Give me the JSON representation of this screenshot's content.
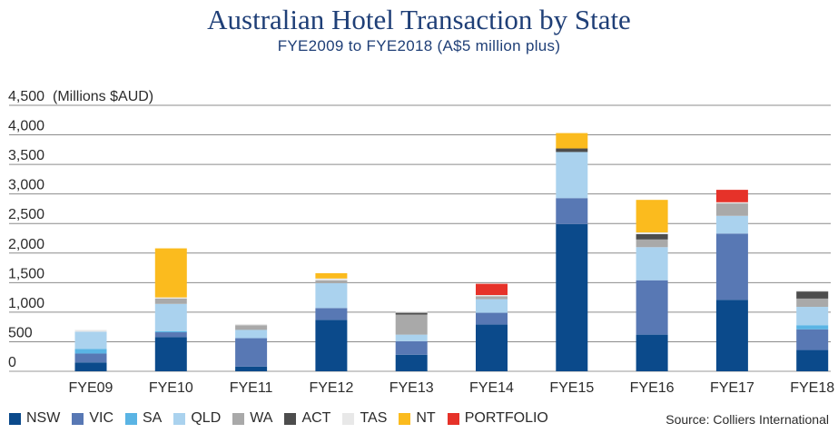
{
  "header": {
    "title": "Australian Hotel Transaction by State",
    "subtitle": "FYE2009 to FYE2018 (A$5 million plus)"
  },
  "source": "Source: Colliers International",
  "chart_data": {
    "type": "bar",
    "stacked": true,
    "title": "Australian Hotel Transaction by State",
    "subtitle": "FYE2009 to FYE2018 (A$5 million plus)",
    "ylabel": "(Millions $AUD)",
    "ylim": [
      0,
      4500
    ],
    "yticks": [
      "0",
      "500",
      "1,000",
      "1,500",
      "2,000",
      "2,500",
      "3,000",
      "3,500",
      "4,000",
      "4,500"
    ],
    "grid": true,
    "legend_position": "bottom",
    "categories": [
      "FYE09",
      "FYE10",
      "FYE11",
      "FYE12",
      "FYE13",
      "FYE14",
      "FYE15",
      "FYE16",
      "FYE17",
      "FYE18"
    ],
    "series": [
      {
        "name": "NSW",
        "color": "#0b4a8b",
        "values": [
          150,
          580,
          80,
          870,
          280,
          790,
          2490,
          620,
          1210,
          360
        ]
      },
      {
        "name": "VIC",
        "color": "#5878b4",
        "values": [
          150,
          80,
          480,
          200,
          230,
          200,
          440,
          920,
          1120,
          350
        ]
      },
      {
        "name": "SA",
        "color": "#5ab4e4",
        "values": [
          80,
          20,
          0,
          0,
          0,
          0,
          0,
          0,
          0,
          70
        ]
      },
      {
        "name": "QLD",
        "color": "#aad2ee",
        "values": [
          290,
          460,
          140,
          420,
          110,
          230,
          780,
          560,
          300,
          310
        ]
      },
      {
        "name": "WA",
        "color": "#a9a9a9",
        "values": [
          0,
          90,
          80,
          50,
          340,
          50,
          0,
          130,
          210,
          140
        ]
      },
      {
        "name": "ACT",
        "color": "#4d4d4d",
        "values": [
          0,
          0,
          0,
          0,
          30,
          0,
          60,
          90,
          0,
          120
        ]
      },
      {
        "name": "TAS",
        "color": "#e8e8e8",
        "values": [
          30,
          20,
          20,
          30,
          20,
          20,
          0,
          30,
          20,
          20
        ]
      },
      {
        "name": "NT",
        "color": "#fbbb1e",
        "values": [
          0,
          830,
          0,
          90,
          0,
          0,
          260,
          550,
          0,
          0
        ]
      },
      {
        "name": "PORTFOLIO",
        "color": "#e63229",
        "values": [
          0,
          0,
          0,
          0,
          0,
          190,
          0,
          0,
          210,
          0
        ]
      }
    ]
  }
}
